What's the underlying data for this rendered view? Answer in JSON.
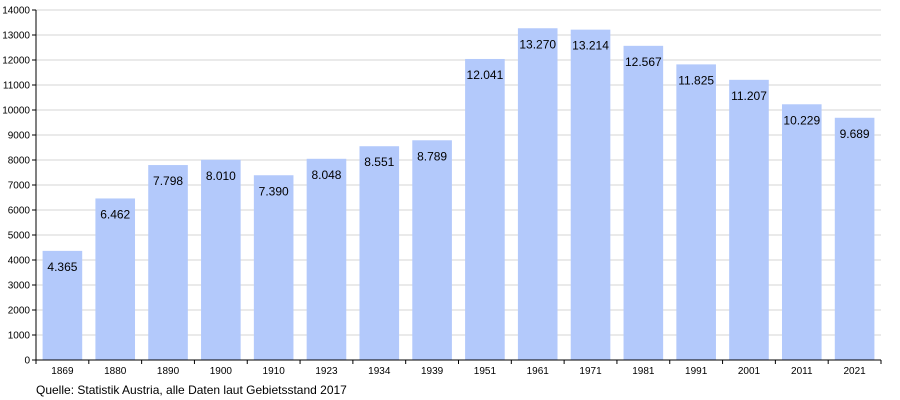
{
  "chart_data": {
    "type": "bar",
    "categories": [
      "1869",
      "1880",
      "1890",
      "1900",
      "1910",
      "1923",
      "1934",
      "1939",
      "1951",
      "1961",
      "1971",
      "1981",
      "1991",
      "2001",
      "2011",
      "2021"
    ],
    "values": [
      4365,
      6462,
      7798,
      8010,
      7390,
      8048,
      8551,
      8789,
      12041,
      13270,
      13214,
      12567,
      11825,
      11207,
      10229,
      9689
    ],
    "value_labels": [
      "4.365",
      "6.462",
      "7.798",
      "8.010",
      "7.390",
      "8.048",
      "8.551",
      "8.789",
      "12.041",
      "13.270",
      "13.214",
      "12.567",
      "11.825",
      "11.207",
      "10.229",
      "9.689"
    ],
    "title": "",
    "xlabel": "",
    "ylabel": "",
    "ylim": [
      0,
      14000
    ],
    "yticks": [
      0,
      1000,
      2000,
      3000,
      4000,
      5000,
      6000,
      7000,
      8000,
      9000,
      10000,
      11000,
      12000,
      13000,
      14000
    ],
    "grid": true,
    "bar_color": "#b3c9fb"
  },
  "source_note": "Quelle: Statistik Austria, alle Daten laut Gebietsstand 2017"
}
